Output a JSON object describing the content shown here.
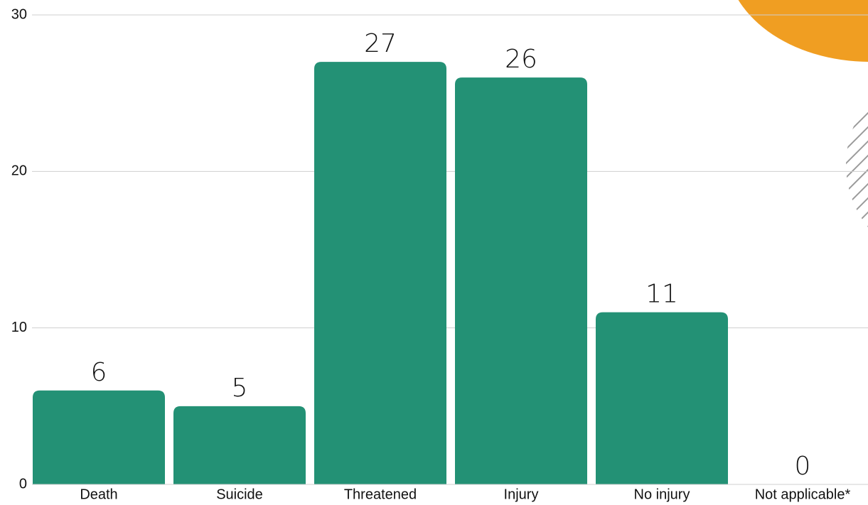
{
  "chart_data": {
    "type": "bar",
    "categories": [
      "Death",
      "Suicide",
      "Threatened",
      "Injury",
      "No injury",
      "Not applicable*"
    ],
    "values": [
      6,
      5,
      27,
      26,
      11,
      0
    ],
    "color": "#239175",
    "ylim": [
      0,
      30
    ],
    "yticks": [
      0,
      10,
      20,
      30
    ],
    "grid": true
  }
}
